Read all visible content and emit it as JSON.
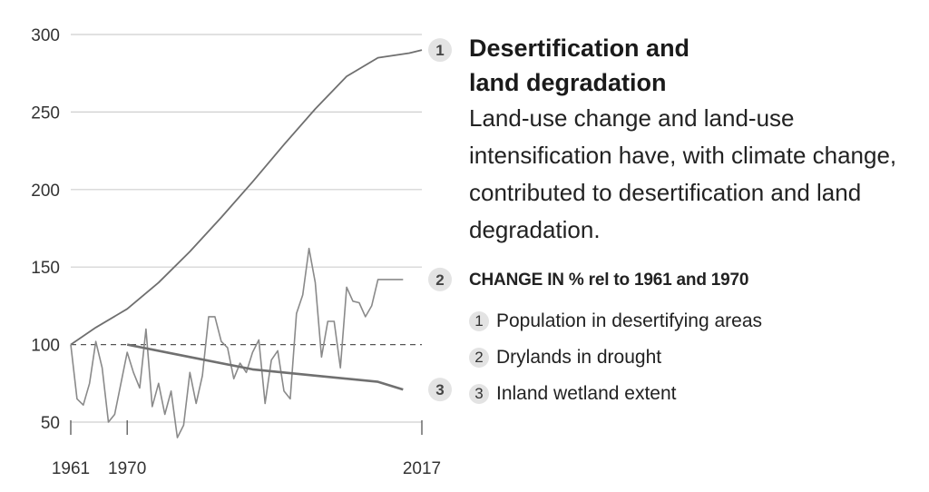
{
  "chart_data": {
    "type": "line",
    "title": "Desertification and land degradation",
    "description": "Land-use change and land-use intensification have, with climate change, contributed to desertification and land degradation.",
    "subtitle": "CHANGE IN % rel to 1961 and 1970",
    "ylim": [
      50,
      300
    ],
    "yticks": [
      "300",
      "250",
      "200",
      "150",
      "100",
      "50"
    ],
    "ytick_values": [
      300,
      250,
      200,
      150,
      100,
      50
    ],
    "xlim": [
      1961,
      2017
    ],
    "xticks": [
      "1961",
      "1970",
      "2017"
    ],
    "xtick_values": [
      1961,
      1970,
      2017
    ],
    "reference_line": 100,
    "series": [
      {
        "id": "1",
        "name": "Population in desertifying areas",
        "x": [
          1961,
          1965,
          1970,
          1975,
          1980,
          1985,
          1990,
          1995,
          2000,
          2005,
          2010,
          2015,
          2017
        ],
        "values": [
          100,
          111,
          123,
          140,
          160,
          182,
          205,
          229,
          252,
          273,
          285,
          288,
          290
        ]
      },
      {
        "id": "2",
        "name": "Drylands in drought",
        "x": [
          1961,
          1962,
          1963,
          1964,
          1965,
          1966,
          1967,
          1968,
          1969,
          1970,
          1971,
          1972,
          1973,
          1974,
          1975,
          1976,
          1977,
          1978,
          1979,
          1980,
          1981,
          1982,
          1983,
          1984,
          1985,
          1986,
          1987,
          1988,
          1989,
          1990,
          1991,
          1992,
          1993,
          1994,
          1995,
          1996,
          1997,
          1998,
          1999,
          2000,
          2001,
          2002,
          2003,
          2004,
          2005,
          2006,
          2007,
          2008,
          2009,
          2010,
          2011,
          2012,
          2013,
          2014
        ],
        "values": [
          100,
          65,
          61,
          75,
          102,
          85,
          50,
          55,
          75,
          95,
          82,
          72,
          110,
          60,
          75,
          55,
          70,
          40,
          48,
          82,
          62,
          80,
          118,
          118,
          102,
          98,
          78,
          88,
          82,
          95,
          103,
          62,
          90,
          96,
          70,
          65,
          120,
          132,
          162,
          140,
          92,
          115,
          115,
          85,
          137,
          128,
          127,
          118,
          125,
          142,
          142,
          142,
          142,
          142
        ]
      },
      {
        "id": "3",
        "name": "Inland wetland extent",
        "x": [
          1970,
          1980,
          1990,
          2000,
          2010,
          2014
        ],
        "values": [
          100,
          92,
          84,
          80,
          76,
          71
        ]
      }
    ]
  }
}
